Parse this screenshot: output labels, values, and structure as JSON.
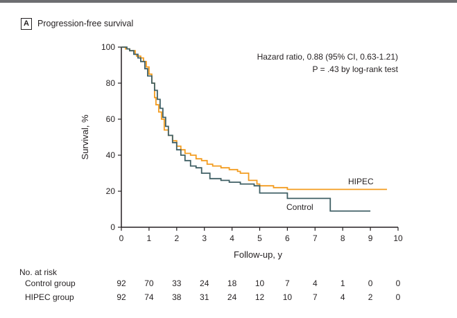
{
  "panel_letter": "A",
  "chart_data": {
    "type": "line",
    "title": "Progression-free survival",
    "xlabel": "Follow-up, y",
    "ylabel": "Survival, %",
    "xlim": [
      0,
      10
    ],
    "ylim": [
      0,
      100
    ],
    "x_ticks": [
      0,
      1,
      2,
      3,
      4,
      5,
      6,
      7,
      8,
      9,
      10
    ],
    "y_ticks": [
      0,
      20,
      40,
      60,
      80,
      100
    ],
    "grid": false,
    "annotations": {
      "hazard_ratio": "Hazard ratio, 0.88 (95% CI, 0.63-1.21)",
      "p_value": "P = .43 by log-rank test"
    },
    "series": [
      {
        "name": "HIPEC",
        "color": "#f39c1f",
        "x": [
          0,
          0.08,
          0.15,
          0.3,
          0.5,
          0.55,
          0.7,
          0.8,
          0.9,
          1.0,
          1.1,
          1.2,
          1.25,
          1.35,
          1.45,
          1.55,
          1.7,
          1.85,
          2.0,
          2.15,
          2.3,
          2.5,
          2.7,
          2.9,
          3.1,
          3.3,
          3.6,
          3.9,
          4.2,
          4.3,
          4.6,
          4.9,
          5.0,
          5.5,
          6.0,
          7.0,
          8.0,
          9.0,
          9.6
        ],
        "y": [
          100,
          100,
          99,
          98,
          96,
          95,
          94,
          92,
          89,
          85,
          80,
          72,
          68,
          64,
          60,
          54,
          51,
          48,
          45,
          43,
          41,
          40,
          38,
          37,
          35,
          34,
          33,
          32,
          31,
          30,
          26,
          24,
          23,
          22,
          21,
          21,
          21,
          21,
          21
        ]
      },
      {
        "name": "Control",
        "color": "#3f5f64",
        "x": [
          0,
          0.1,
          0.2,
          0.3,
          0.45,
          0.6,
          0.7,
          0.85,
          0.95,
          1.1,
          1.2,
          1.3,
          1.4,
          1.5,
          1.6,
          1.7,
          1.85,
          2.0,
          2.15,
          2.3,
          2.5,
          2.7,
          2.9,
          3.2,
          3.6,
          3.9,
          4.3,
          4.8,
          5.0,
          5.9,
          6.0,
          7.0,
          7.3,
          7.55,
          8.0,
          9.0
        ],
        "y": [
          100,
          100,
          99,
          98,
          96,
          94,
          92,
          88,
          84,
          80,
          76,
          71,
          66,
          61,
          56,
          51,
          47,
          43,
          40,
          37,
          34,
          33,
          30,
          27,
          26,
          25,
          24,
          23,
          19,
          19,
          16,
          16,
          16,
          9,
          9,
          9
        ]
      }
    ],
    "series_labels": {
      "hipec": "HIPEC",
      "control": "Control"
    },
    "risk_table": {
      "header": "No. at risk",
      "rows": [
        {
          "label": "Control group",
          "values": [
            "92",
            "70",
            "33",
            "24",
            "18",
            "10",
            "7",
            "4",
            "1",
            "0",
            "0"
          ]
        },
        {
          "label": "HIPEC group",
          "values": [
            "92",
            "74",
            "38",
            "31",
            "24",
            "12",
            "10",
            "7",
            "4",
            "2",
            "0"
          ]
        }
      ]
    }
  }
}
